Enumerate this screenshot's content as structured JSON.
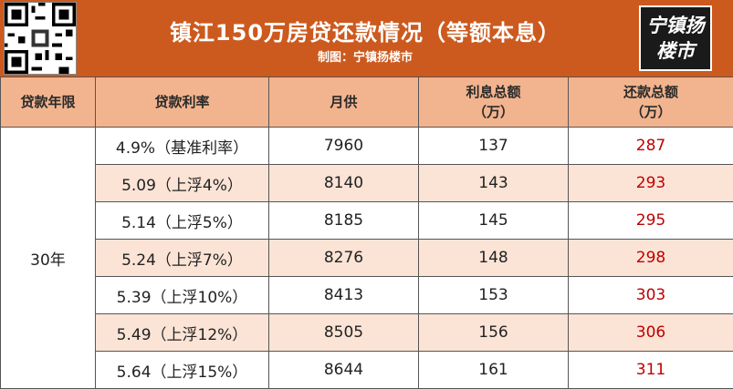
{
  "header": {
    "title": "镇江150万房贷还款情况（等额本息）",
    "subtitle": "制图：宁镇扬楼市",
    "logo_line1": "宁镇扬",
    "logo_line2": "楼市",
    "brand_color": "#cc5a1e",
    "header_row_color": "#f2b48e",
    "stripe_color": "#fbe4d6",
    "repay_color": "#c00000"
  },
  "table": {
    "columns": [
      {
        "line1": "贷款年限",
        "line2": ""
      },
      {
        "line1": "贷款利率",
        "line2": ""
      },
      {
        "line1": "月供",
        "line2": ""
      },
      {
        "line1": "利息总额",
        "line2": "（万）"
      },
      {
        "line1": "还款总额",
        "line2": "（万）"
      }
    ],
    "term": "30年",
    "rows": [
      {
        "rate": "4.9%（基准利率）",
        "monthly": "7960",
        "interest": "137",
        "total": "287"
      },
      {
        "rate": "5.09（上浮4%）",
        "monthly": "8140",
        "interest": "143",
        "total": "293"
      },
      {
        "rate": "5.14（上浮5%）",
        "monthly": "8185",
        "interest": "145",
        "total": "295"
      },
      {
        "rate": "5.24（上浮7%）",
        "monthly": "8276",
        "interest": "148",
        "total": "298"
      },
      {
        "rate": "5.39（上浮10%）",
        "monthly": "8413",
        "interest": "153",
        "total": "303"
      },
      {
        "rate": "5.49（上浮12%）",
        "monthly": "8505",
        "interest": "156",
        "total": "306"
      },
      {
        "rate": "5.64（上浮15%）",
        "monthly": "8644",
        "interest": "161",
        "total": "311"
      }
    ]
  }
}
